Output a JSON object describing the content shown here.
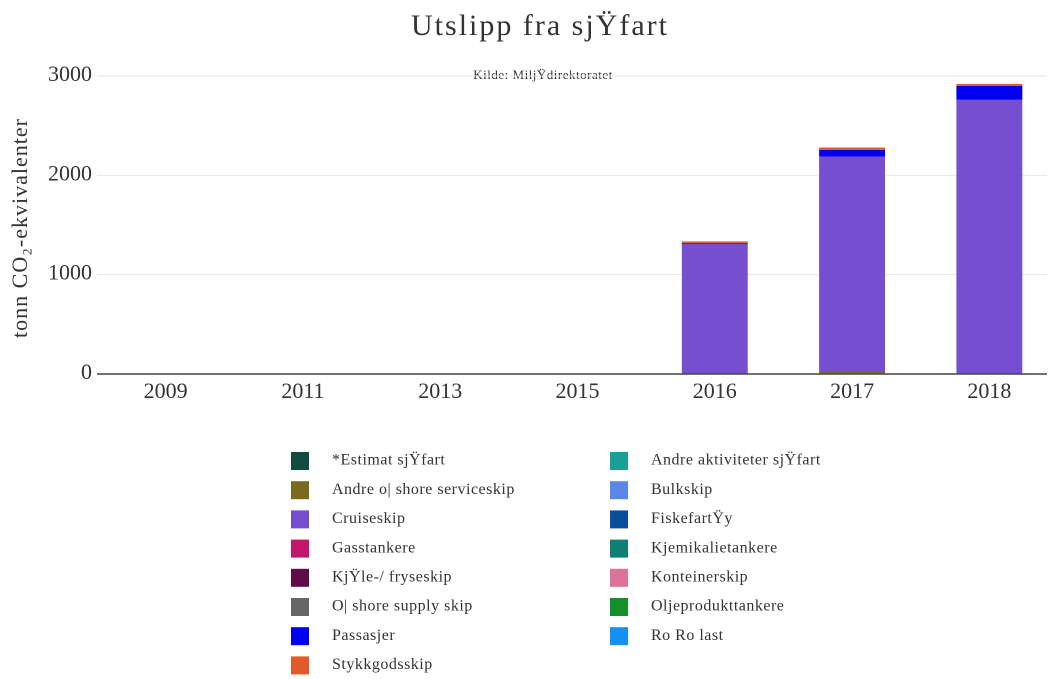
{
  "chart_data": {
    "type": "stacked_bar",
    "title": "Utslipp fra sjŸfart",
    "subtitle": "Kilde: MiljŸdirektoratet",
    "y_label": "tonn CO₂-ekvivalenter",
    "categories": [
      "2009",
      "2011",
      "2013",
      "2015",
      "2016",
      "2017",
      "2018"
    ],
    "ylim": [
      0,
      3000
    ],
    "yticks": [
      0,
      1000,
      2000,
      3000
    ],
    "grid": true,
    "series": [
      {
        "name": "*Estimat sjŸfart",
        "color": "#114b3f",
        "values": [
          0,
          0,
          0,
          0,
          0,
          0,
          0
        ]
      },
      {
        "name": "Andre aktiviteter sjŸfart",
        "color": "#1a9e96",
        "values": [
          0,
          0,
          0,
          0,
          0,
          0,
          0
        ]
      },
      {
        "name": "Andre o| shore serviceskip",
        "color": "#7a6a1e",
        "values": [
          0,
          0,
          0,
          0,
          0,
          20,
          0
        ]
      },
      {
        "name": "Bulkskip",
        "color": "#5b88e8",
        "values": [
          0,
          0,
          0,
          0,
          0,
          0,
          0
        ]
      },
      {
        "name": "Cruiseskip",
        "color": "#764ed0",
        "values": [
          0,
          0,
          0,
          0,
          1310,
          2170,
          2760
        ]
      },
      {
        "name": "FiskefartŸy",
        "color": "#0a4f9c",
        "values": [
          0,
          0,
          0,
          0,
          0,
          0,
          0
        ]
      },
      {
        "name": "Gasstankere",
        "color": "#c2176b",
        "values": [
          0,
          0,
          0,
          0,
          0,
          0,
          0
        ]
      },
      {
        "name": "Kjemikalietankere",
        "color": "#0f7f74",
        "values": [
          0,
          0,
          0,
          0,
          0,
          0,
          0
        ]
      },
      {
        "name": "KjŸle-/ fryseskip",
        "color": "#5e0b4a",
        "values": [
          0,
          0,
          0,
          0,
          10,
          0,
          0
        ]
      },
      {
        "name": "Konteinerskip",
        "color": "#db7399",
        "values": [
          0,
          0,
          0,
          0,
          0,
          0,
          0
        ]
      },
      {
        "name": "O| shore supply skip",
        "color": "#666666",
        "values": [
          0,
          0,
          0,
          0,
          0,
          0,
          0
        ]
      },
      {
        "name": "Oljeprodukttankere",
        "color": "#138f2b",
        "values": [
          0,
          0,
          0,
          0,
          0,
          0,
          0
        ]
      },
      {
        "name": "Passasjer",
        "color": "#0000f0",
        "values": [
          0,
          0,
          0,
          0,
          0,
          65,
          140
        ]
      },
      {
        "name": "Ro Ro last",
        "color": "#1591f2",
        "values": [
          0,
          0,
          0,
          0,
          0,
          0,
          0
        ]
      },
      {
        "name": "Stykkgodsskip",
        "color": "#e35a2a",
        "values": [
          0,
          0,
          0,
          5,
          15,
          25,
          20
        ]
      }
    ]
  }
}
